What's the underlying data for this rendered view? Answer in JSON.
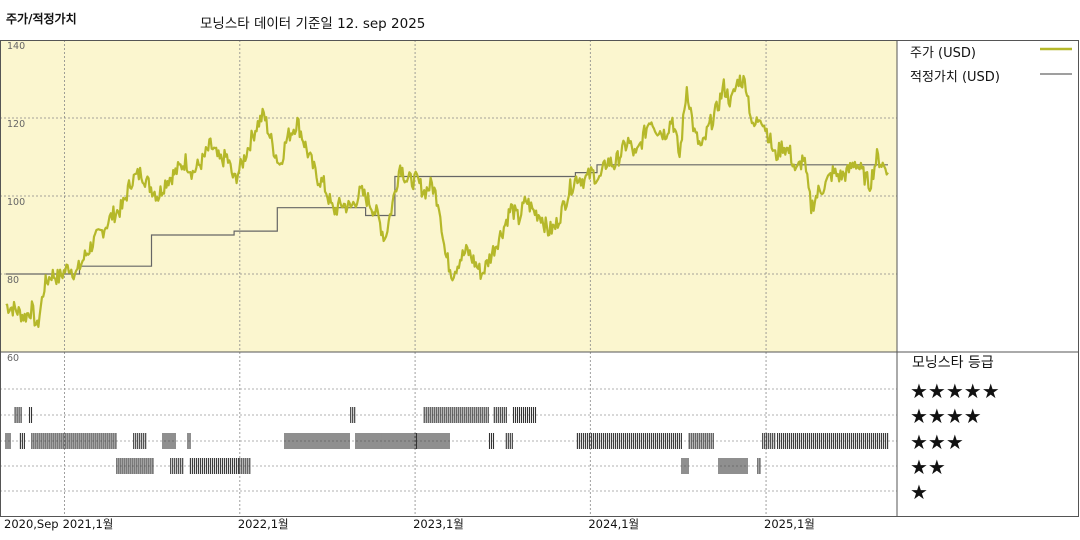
{
  "header": {
    "title": "주가/적정가치",
    "subtitle": "모닝스타 데이터 기준일 12. sep 2025"
  },
  "colors": {
    "price_line": "#b5b82a",
    "fair_value_line": "#666666",
    "plot_background": "#fbf6cf",
    "rating_bars": "#333333"
  },
  "legend": {
    "price_label": "주가 (USD)",
    "fair_value_label": "적정가치 (USD)"
  },
  "rating_panel": {
    "title": "모닝스타 등급",
    "levels": [
      {
        "stars": 5,
        "label": "★★★★★"
      },
      {
        "stars": 4,
        "label": "★★★★"
      },
      {
        "stars": 3,
        "label": "★★★"
      },
      {
        "stars": 2,
        "label": "★★"
      },
      {
        "stars": 1,
        "label": "★"
      }
    ]
  },
  "chart_data": {
    "type": "line",
    "x_axis": {
      "range": [
        "2020-09-01",
        "2025-09-12"
      ],
      "tick_labels": [
        {
          "date": "2020-09-01",
          "label": "2020,Sep"
        },
        {
          "date": "2021-01-01",
          "label": "2021,1월"
        },
        {
          "date": "2022-01-01",
          "label": "2022,1월"
        },
        {
          "date": "2023-01-01",
          "label": "2023,1월"
        },
        {
          "date": "2024-01-01",
          "label": "2024,1월"
        },
        {
          "date": "2025-01-01",
          "label": "2025,1월"
        }
      ]
    },
    "y_axis": {
      "range": [
        60,
        140
      ],
      "ticks": [
        60,
        80,
        100,
        120,
        140
      ]
    },
    "series": [
      {
        "name": "주가 (USD)",
        "points": [
          [
            "2020-09-01",
            72
          ],
          [
            "2020-09-20",
            71
          ],
          [
            "2020-10-10",
            69
          ],
          [
            "2020-10-25",
            71
          ],
          [
            "2020-11-05",
            66
          ],
          [
            "2020-11-20",
            77
          ],
          [
            "2020-12-05",
            80
          ],
          [
            "2020-12-20",
            79
          ],
          [
            "2021-01-10",
            82
          ],
          [
            "2021-01-25",
            80
          ],
          [
            "2021-02-10",
            84
          ],
          [
            "2021-03-01",
            88
          ],
          [
            "2021-03-20",
            91
          ],
          [
            "2021-04-10",
            95
          ],
          [
            "2021-05-01",
            97
          ],
          [
            "2021-05-20",
            104
          ],
          [
            "2021-06-10",
            106
          ],
          [
            "2021-06-25",
            103
          ],
          [
            "2021-07-15",
            100
          ],
          [
            "2021-08-01",
            104
          ],
          [
            "2021-08-20",
            106
          ],
          [
            "2021-09-10",
            109
          ],
          [
            "2021-09-25",
            106
          ],
          [
            "2021-10-15",
            109
          ],
          [
            "2021-11-01",
            113
          ],
          [
            "2021-11-20",
            109
          ],
          [
            "2021-12-05",
            110
          ],
          [
            "2021-12-20",
            104
          ],
          [
            "2022-01-05",
            108
          ],
          [
            "2022-01-20",
            113
          ],
          [
            "2022-02-05",
            118
          ],
          [
            "2022-02-20",
            121
          ],
          [
            "2022-03-10",
            113
          ],
          [
            "2022-03-25",
            108
          ],
          [
            "2022-04-10",
            115
          ],
          [
            "2022-05-01",
            119
          ],
          [
            "2022-05-20",
            112
          ],
          [
            "2022-06-10",
            105
          ],
          [
            "2022-06-25",
            103
          ],
          [
            "2022-07-15",
            96
          ],
          [
            "2022-08-01",
            98
          ],
          [
            "2022-08-20",
            97
          ],
          [
            "2022-09-10",
            101
          ],
          [
            "2022-09-25",
            99
          ],
          [
            "2022-10-15",
            95
          ],
          [
            "2022-10-30",
            89
          ],
          [
            "2022-11-15",
            98
          ],
          [
            "2022-12-01",
            108
          ],
          [
            "2022-12-15",
            104
          ],
          [
            "2023-01-05",
            104
          ],
          [
            "2023-01-20",
            101
          ],
          [
            "2023-02-05",
            103
          ],
          [
            "2023-02-20",
            98
          ],
          [
            "2023-03-05",
            85
          ],
          [
            "2023-03-20",
            80
          ],
          [
            "2023-04-05",
            84
          ],
          [
            "2023-04-20",
            86
          ],
          [
            "2023-05-05",
            83
          ],
          [
            "2023-05-20",
            80
          ],
          [
            "2023-06-05",
            84
          ],
          [
            "2023-06-20",
            88
          ],
          [
            "2023-07-05",
            92
          ],
          [
            "2023-07-20",
            97
          ],
          [
            "2023-08-05",
            94
          ],
          [
            "2023-08-20",
            99
          ],
          [
            "2023-09-05",
            96
          ],
          [
            "2023-09-20",
            95
          ],
          [
            "2023-10-05",
            91
          ],
          [
            "2023-10-20",
            92
          ],
          [
            "2023-11-05",
            97
          ],
          [
            "2023-11-20",
            102
          ],
          [
            "2023-12-05",
            105
          ],
          [
            "2023-12-20",
            104
          ],
          [
            "2024-01-05",
            106
          ],
          [
            "2024-01-20",
            104
          ],
          [
            "2024-02-05",
            109
          ],
          [
            "2024-02-20",
            108
          ],
          [
            "2024-03-05",
            111
          ],
          [
            "2024-03-20",
            114
          ],
          [
            "2024-04-05",
            110
          ],
          [
            "2024-04-20",
            115
          ],
          [
            "2024-05-05",
            120
          ],
          [
            "2024-05-20",
            117
          ],
          [
            "2024-06-05",
            116
          ],
          [
            "2024-06-20",
            120
          ],
          [
            "2024-07-05",
            110
          ],
          [
            "2024-07-20",
            128
          ],
          [
            "2024-08-05",
            116
          ],
          [
            "2024-08-20",
            112
          ],
          [
            "2024-09-05",
            118
          ],
          [
            "2024-09-20",
            122
          ],
          [
            "2024-10-05",
            128
          ],
          [
            "2024-10-20",
            124
          ],
          [
            "2024-11-05",
            130
          ],
          [
            "2024-11-20",
            129
          ],
          [
            "2024-12-05",
            117
          ],
          [
            "2024-12-20",
            121
          ],
          [
            "2025-01-05",
            116
          ],
          [
            "2025-01-20",
            110
          ],
          [
            "2025-02-05",
            113
          ],
          [
            "2025-02-20",
            111
          ],
          [
            "2025-03-05",
            106
          ],
          [
            "2025-03-20",
            110
          ],
          [
            "2025-04-05",
            97
          ],
          [
            "2025-04-20",
            101
          ],
          [
            "2025-05-05",
            103
          ],
          [
            "2025-05-20",
            106
          ],
          [
            "2025-06-05",
            105
          ],
          [
            "2025-06-20",
            106
          ],
          [
            "2025-07-05",
            109
          ],
          [
            "2025-07-20",
            106
          ],
          [
            "2025-08-05",
            103
          ],
          [
            "2025-08-20",
            110
          ],
          [
            "2025-09-01",
            108
          ],
          [
            "2025-09-12",
            106
          ]
        ]
      },
      {
        "name": "적정가치 (USD)",
        "points": [
          [
            "2020-09-01",
            80
          ],
          [
            "2021-02-01",
            80
          ],
          [
            "2021-02-01",
            82
          ],
          [
            "2021-07-01",
            82
          ],
          [
            "2021-07-01",
            90
          ],
          [
            "2021-12-20",
            90
          ],
          [
            "2021-12-20",
            91
          ],
          [
            "2022-03-20",
            91
          ],
          [
            "2022-03-20",
            97
          ],
          [
            "2022-09-20",
            97
          ],
          [
            "2022-09-20",
            95
          ],
          [
            "2022-11-20",
            95
          ],
          [
            "2022-11-20",
            105
          ],
          [
            "2023-12-01",
            105
          ],
          [
            "2023-12-01",
            106
          ],
          [
            "2024-01-15",
            106
          ],
          [
            "2024-01-15",
            108
          ],
          [
            "2025-09-12",
            108
          ]
        ]
      }
    ],
    "rating_history": [
      {
        "start": "2020-09-20",
        "end": "2020-10-05",
        "stars": 4
      },
      {
        "start": "2020-10-20",
        "end": "2020-10-25",
        "stars": 4
      },
      {
        "start": "2020-09-01",
        "end": "2020-09-10",
        "stars": 3
      },
      {
        "start": "2020-10-01",
        "end": "2020-10-10",
        "stars": 3
      },
      {
        "start": "2020-10-25",
        "end": "2021-04-20",
        "stars": 3
      },
      {
        "start": "2021-05-25",
        "end": "2021-06-20",
        "stars": 3
      },
      {
        "start": "2021-07-25",
        "end": "2021-08-20",
        "stars": 3
      },
      {
        "start": "2021-09-15",
        "end": "2021-09-20",
        "stars": 3
      },
      {
        "start": "2021-04-20",
        "end": "2021-07-05",
        "stars": 2
      },
      {
        "start": "2021-08-10",
        "end": "2021-09-05",
        "stars": 2
      },
      {
        "start": "2021-09-20",
        "end": "2021-12-31",
        "stars": 2
      },
      {
        "start": "2022-01-01",
        "end": "2022-01-25",
        "stars": 2
      },
      {
        "start": "2022-04-05",
        "end": "2022-08-20",
        "stars": 3
      },
      {
        "start": "2022-08-20",
        "end": "2022-08-31",
        "stars": 4
      },
      {
        "start": "2022-08-31",
        "end": "2023-01-05",
        "stars": 3
      },
      {
        "start": "2023-01-05",
        "end": "2023-03-15",
        "stars": 3
      },
      {
        "start": "2023-01-20",
        "end": "2023-06-05",
        "stars": 4
      },
      {
        "start": "2023-06-15",
        "end": "2023-07-10",
        "stars": 4
      },
      {
        "start": "2023-07-25",
        "end": "2023-09-10",
        "stars": 4
      },
      {
        "start": "2023-06-05",
        "end": "2023-06-15",
        "stars": 3
      },
      {
        "start": "2023-07-10",
        "end": "2023-07-25",
        "stars": 3
      },
      {
        "start": "2023-12-05",
        "end": "2024-07-10",
        "stars": 3
      },
      {
        "start": "2024-07-25",
        "end": "2024-09-15",
        "stars": 3
      },
      {
        "start": "2024-07-10",
        "end": "2024-07-25",
        "stars": 2
      },
      {
        "start": "2024-09-25",
        "end": "2024-11-25",
        "stars": 2
      },
      {
        "start": "2024-12-15",
        "end": "2024-12-20",
        "stars": 2
      },
      {
        "start": "2024-12-25",
        "end": "2025-01-20",
        "stars": 3
      },
      {
        "start": "2025-01-25",
        "end": "2025-09-12",
        "stars": 3
      }
    ]
  }
}
